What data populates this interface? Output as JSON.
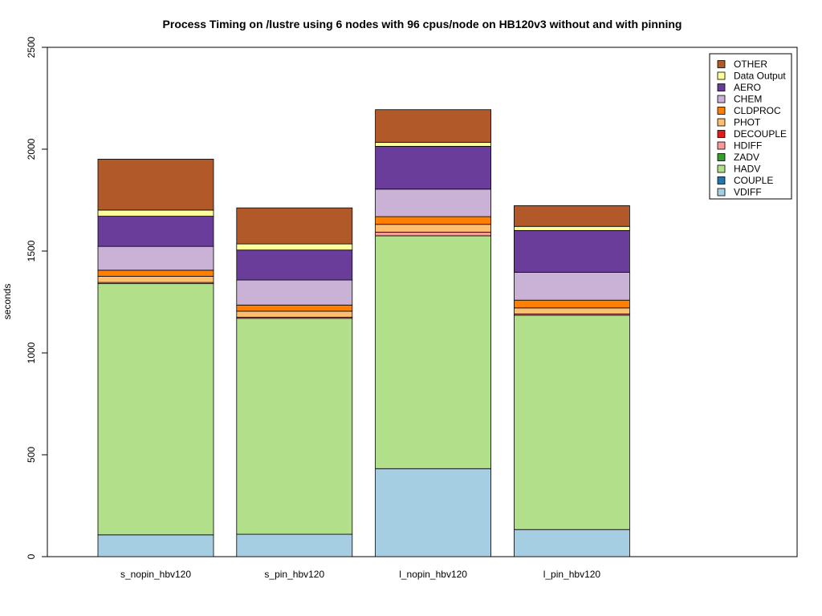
{
  "chart_data": {
    "type": "bar",
    "stacked": true,
    "title": "Process Timing on /lustre using 6 nodes with 96 cpus/node on HB120v3 without and with pinning",
    "xlabel": "",
    "ylabel": "seconds",
    "ylim": [
      0,
      2500
    ],
    "yticks": [
      0,
      500,
      1000,
      1500,
      2000,
      2500
    ],
    "grid": false,
    "legend_position": "top-right",
    "categories": [
      "s_nopin_hbv120",
      "s_pin_hbv120",
      "l_nopin_hbv120",
      "l_pin_hbv120"
    ],
    "series": [
      {
        "name": "VDIFF",
        "color": "#a6cee3",
        "values": [
          107,
          110,
          432,
          133
        ]
      },
      {
        "name": "COUPLE",
        "color": "#1f78b4",
        "values": [
          0,
          0,
          0,
          0
        ]
      },
      {
        "name": "HADV",
        "color": "#b2df8a",
        "values": [
          1233,
          1060,
          1143,
          1052
        ]
      },
      {
        "name": "ZADV",
        "color": "#33a02c",
        "values": [
          0,
          0,
          0,
          0
        ]
      },
      {
        "name": "HDIFF",
        "color": "#fb9a99",
        "values": [
          6,
          5,
          18,
          6
        ]
      },
      {
        "name": "DECOUPLE",
        "color": "#e31a1c",
        "values": [
          0,
          0,
          0,
          0
        ]
      },
      {
        "name": "PHOT",
        "color": "#fdbf6f",
        "values": [
          30,
          30,
          38,
          30
        ]
      },
      {
        "name": "CLDPROC",
        "color": "#ff7f00",
        "values": [
          30,
          30,
          38,
          38
        ]
      },
      {
        "name": "CHEM",
        "color": "#cab2d6",
        "values": [
          117,
          123,
          135,
          137
        ]
      },
      {
        "name": "AERO",
        "color": "#6a3d9a",
        "values": [
          148,
          147,
          210,
          205
        ]
      },
      {
        "name": "Data Output",
        "color": "#ffff99",
        "values": [
          30,
          30,
          20,
          20
        ]
      },
      {
        "name": "OTHER",
        "color": "#b15928",
        "values": [
          250,
          177,
          160,
          102
        ]
      }
    ]
  }
}
